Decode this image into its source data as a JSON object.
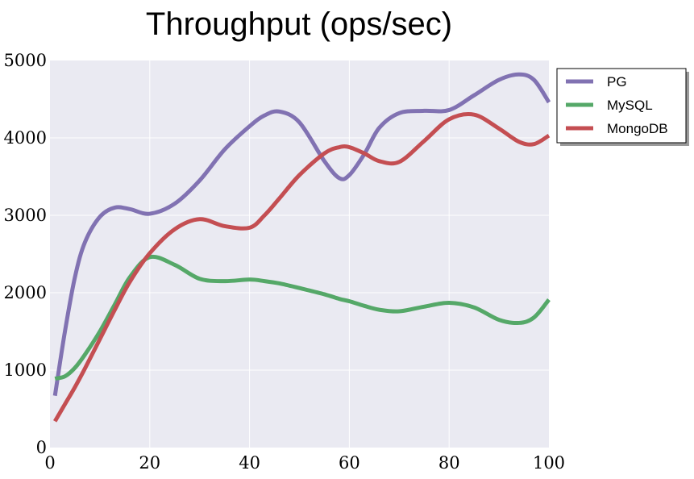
{
  "chart_data": {
    "type": "line",
    "title": "Throughput (ops/sec)",
    "xlabel": "",
    "ylabel": "",
    "xlim": [
      0,
      100
    ],
    "ylim": [
      0,
      5000
    ],
    "xticks": [
      "0",
      "20",
      "40",
      "60",
      "80",
      "100"
    ],
    "yticks": [
      "0",
      "1000",
      "2000",
      "3000",
      "4000",
      "5000"
    ],
    "grid": true,
    "legend_position": "outside-top-right",
    "x": [
      1,
      3,
      5,
      7,
      10,
      13,
      16,
      20,
      25,
      30,
      35,
      40,
      43,
      46,
      50,
      55,
      58,
      60,
      63,
      66,
      70,
      75,
      80,
      85,
      90,
      94,
      97,
      100
    ],
    "series": [
      {
        "name": "PG",
        "color": "#8172b2",
        "values": [
          670,
          1500,
          2200,
          2650,
          2980,
          3100,
          3080,
          3020,
          3150,
          3450,
          3850,
          4150,
          4290,
          4340,
          4200,
          3700,
          3480,
          3520,
          3790,
          4130,
          4320,
          4350,
          4360,
          4550,
          4750,
          4820,
          4750,
          4460
        ]
      },
      {
        "name": "MySQL",
        "color": "#55a868",
        "values": [
          890,
          920,
          1030,
          1200,
          1500,
          1850,
          2200,
          2460,
          2360,
          2180,
          2150,
          2170,
          2150,
          2120,
          2060,
          1980,
          1920,
          1890,
          1830,
          1780,
          1760,
          1820,
          1870,
          1810,
          1650,
          1610,
          1680,
          1910
        ]
      },
      {
        "name": "MongoDB",
        "color": "#c44e52",
        "values": [
          340,
          560,
          780,
          1020,
          1400,
          1780,
          2140,
          2510,
          2820,
          2950,
          2860,
          2840,
          3000,
          3220,
          3520,
          3800,
          3880,
          3880,
          3800,
          3700,
          3690,
          3960,
          4240,
          4300,
          4120,
          3950,
          3920,
          4030
        ]
      }
    ]
  }
}
